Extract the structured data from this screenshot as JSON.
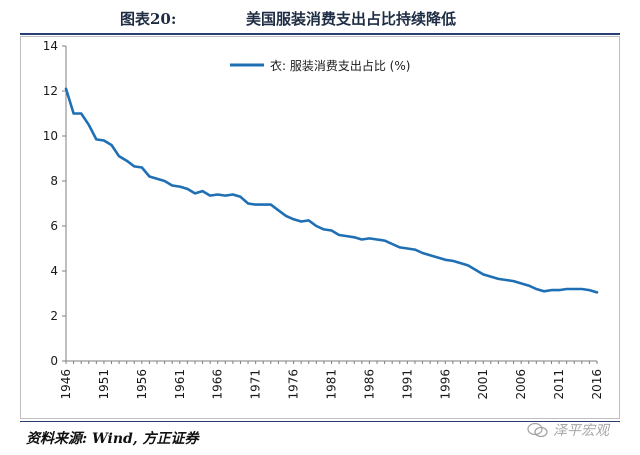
{
  "header": {
    "figure_label": "图表20:",
    "title": "美国服装消费支出占比持续降低"
  },
  "footer": {
    "source": "资料来源: Wind, 方正证券",
    "watermark": "泽平宏观"
  },
  "colors": {
    "line": "#1f6fb5",
    "rule": "#2a3f73",
    "axis": "#7f7f7f"
  },
  "chart_data": {
    "type": "line",
    "title": "",
    "xlabel": "",
    "ylabel": "",
    "xlim": [
      1946,
      2016
    ],
    "ylim": [
      0,
      14
    ],
    "yticks": [
      0,
      2,
      4,
      6,
      8,
      10,
      12,
      14
    ],
    "xticks": [
      1946,
      1951,
      1956,
      1961,
      1966,
      1971,
      1976,
      1981,
      1986,
      1991,
      1996,
      2001,
      2006,
      2011,
      2016
    ],
    "grid": false,
    "legend_position": "top-center",
    "series": [
      {
        "name": "衣: 服装消费支出占比 (%)",
        "x": [
          1946,
          1947,
          1948,
          1949,
          1950,
          1951,
          1952,
          1953,
          1954,
          1955,
          1956,
          1957,
          1958,
          1959,
          1960,
          1961,
          1962,
          1963,
          1964,
          1965,
          1966,
          1967,
          1968,
          1969,
          1970,
          1971,
          1972,
          1973,
          1974,
          1975,
          1976,
          1977,
          1978,
          1979,
          1980,
          1981,
          1982,
          1983,
          1984,
          1985,
          1986,
          1987,
          1988,
          1989,
          1990,
          1991,
          1992,
          1993,
          1994,
          1995,
          1996,
          1997,
          1998,
          1999,
          2000,
          2001,
          2002,
          2003,
          2004,
          2005,
          2006,
          2007,
          2008,
          2009,
          2010,
          2011,
          2012,
          2013,
          2014,
          2015,
          2016
        ],
        "y": [
          12.1,
          11.0,
          11.0,
          10.5,
          9.85,
          9.8,
          9.6,
          9.1,
          8.9,
          8.65,
          8.6,
          8.2,
          8.1,
          8.0,
          7.8,
          7.75,
          7.65,
          7.45,
          7.55,
          7.35,
          7.4,
          7.35,
          7.4,
          7.3,
          7.0,
          6.95,
          6.95,
          6.95,
          6.7,
          6.45,
          6.3,
          6.2,
          6.25,
          6.0,
          5.85,
          5.8,
          5.6,
          5.55,
          5.5,
          5.4,
          5.45,
          5.4,
          5.35,
          5.2,
          5.05,
          5.0,
          4.95,
          4.8,
          4.7,
          4.6,
          4.5,
          4.45,
          4.35,
          4.25,
          4.05,
          3.85,
          3.75,
          3.65,
          3.6,
          3.55,
          3.45,
          3.35,
          3.2,
          3.1,
          3.15,
          3.15,
          3.2,
          3.2,
          3.2,
          3.15,
          3.05
        ]
      }
    ]
  }
}
